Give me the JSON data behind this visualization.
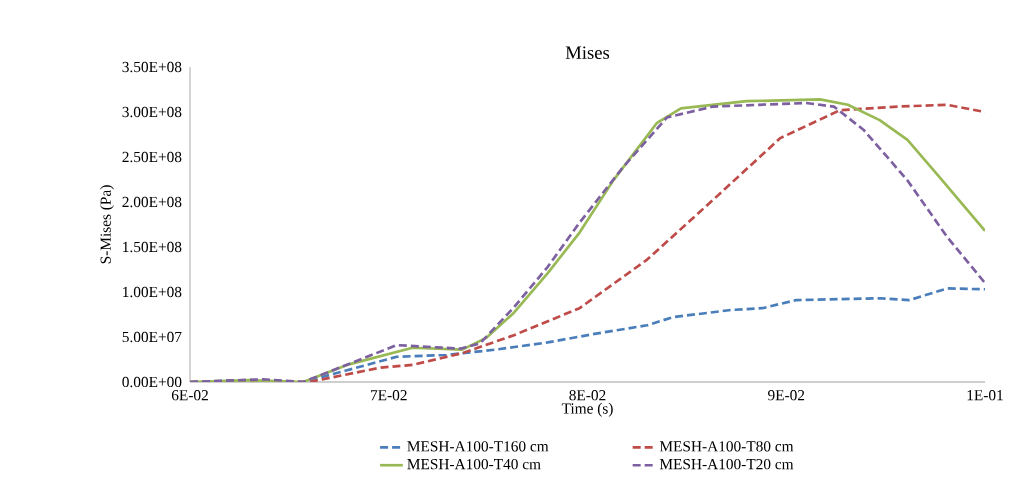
{
  "chart_data": {
    "type": "line",
    "title": "Mises",
    "xlabel": "Time (s)",
    "ylabel": "S-Mises (Pa)",
    "xlim": [
      0.06,
      0.1
    ],
    "ylim": [
      0,
      350000000
    ],
    "xticks": [
      {
        "value": 0.06,
        "label": "6E-02"
      },
      {
        "value": 0.07,
        "label": "7E-02"
      },
      {
        "value": 0.08,
        "label": "8E-02"
      },
      {
        "value": 0.09,
        "label": "9E-02"
      },
      {
        "value": 0.1,
        "label": "1E-01"
      }
    ],
    "yticks": [
      {
        "value": 0,
        "label": "0.00E+00"
      },
      {
        "value": 50000000,
        "label": "5.00E+07"
      },
      {
        "value": 100000000,
        "label": "1.00E+08"
      },
      {
        "value": 150000000,
        "label": "1.50E+08"
      },
      {
        "value": 200000000,
        "label": "2.00E+08"
      },
      {
        "value": 250000000,
        "label": "2.50E+08"
      },
      {
        "value": 300000000,
        "label": "3.00E+08"
      },
      {
        "value": 350000000,
        "label": "3.50E+08"
      }
    ],
    "grid": false,
    "legend": "bottom",
    "marker": "none",
    "series": [
      {
        "name": "MESH-A100-T160 cm",
        "color": "#4a7ebb",
        "line_style": "dashed",
        "x": [
          0.06,
          0.063,
          0.0657,
          0.0679,
          0.0704,
          0.0729,
          0.0754,
          0.078,
          0.0805,
          0.083,
          0.0843,
          0.0872,
          0.0888,
          0.0905,
          0.0947,
          0.0962,
          0.0981,
          0.1
        ],
        "values": [
          0,
          2000000,
          0,
          13000000,
          28000000,
          30000000,
          36000000,
          44000000,
          54000000,
          63000000,
          72000000,
          80000000,
          82000000,
          91000000,
          93000000,
          91000000,
          104000000,
          103000000
        ]
      },
      {
        "name": "MESH-A100-T80 cm",
        "color": "#be4b48",
        "line_style": "dashed",
        "x": [
          0.06,
          0.063,
          0.066,
          0.0696,
          0.0712,
          0.0737,
          0.0763,
          0.0796,
          0.083,
          0.0863,
          0.0897,
          0.0927,
          0.0956,
          0.0981,
          0.1
        ],
        "values": [
          0,
          1000000,
          0,
          16000000,
          19000000,
          32000000,
          52000000,
          82000000,
          136000000,
          202000000,
          271000000,
          302000000,
          306000000,
          308000000,
          300000000
        ]
      },
      {
        "name": "MESH-A100-T40 cm",
        "color": "#98b954",
        "line_style": "solid",
        "x": [
          0.06,
          0.063,
          0.0657,
          0.0679,
          0.0712,
          0.0737,
          0.0749,
          0.0763,
          0.078,
          0.0796,
          0.0813,
          0.0835,
          0.0847,
          0.088,
          0.0917,
          0.0931,
          0.0947,
          0.0961,
          0.0977,
          0.1
        ],
        "values": [
          0,
          2000000,
          0,
          19000000,
          38000000,
          36000000,
          49000000,
          77000000,
          121000000,
          166000000,
          224000000,
          288000000,
          304000000,
          312000000,
          314000000,
          308000000,
          291000000,
          269000000,
          228000000,
          168000000
        ]
      },
      {
        "name": "MESH-A100-T20 cm",
        "color": "#7d60a0",
        "line_style": "dashed",
        "x": [
          0.06,
          0.0637,
          0.0657,
          0.0704,
          0.0736,
          0.0746,
          0.0763,
          0.078,
          0.0796,
          0.0818,
          0.084,
          0.0863,
          0.091,
          0.0924,
          0.0939,
          0.0961,
          0.0981,
          0.1
        ],
        "values": [
          0,
          3000000,
          0,
          41000000,
          37000000,
          43000000,
          83000000,
          128000000,
          177000000,
          239000000,
          294000000,
          306000000,
          310000000,
          306000000,
          280000000,
          224000000,
          161000000,
          110000000
        ]
      }
    ]
  }
}
